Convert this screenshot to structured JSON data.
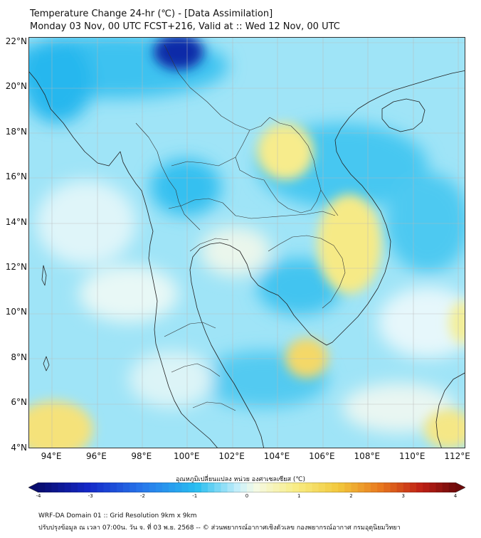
{
  "title_line1": "Temperature Change 24-hr (℃) - [Data Assimilation]",
  "title_line2": "Monday 03 Nov, 00 UTC FCST+216, Valid at :: Wed 12 Nov, 00 UTC",
  "lat_labels": [
    "22°N",
    "20°N",
    "18°N",
    "16°N",
    "14°N",
    "12°N",
    "10°N",
    "8°N",
    "6°N",
    "4°N"
  ],
  "lon_labels": [
    "94°E",
    "96°E",
    "98°E",
    "100°E",
    "102°E",
    "104°E",
    "106°E",
    "108°E",
    "110°E",
    "112°E"
  ],
  "colorbar": {
    "title": "อุณหภูมิเปลี่ยนแปลง หน่วย องศาเซลเซียส (℃)",
    "ticks": [
      "-4",
      "-3",
      "-2",
      "-1",
      "0",
      "1",
      "2",
      "3",
      "4"
    ],
    "min": -4,
    "max": 4
  },
  "footer_line1": "WRF-DA Domain 01 :: Grid Resolution 9km x 9km",
  "footer_line2": "ปรับปรุงข้อมูล ณ เวลา 07:00น. วัน จ. ที่ 03 พ.ย. 2568 -- © ส่วนพยากรณ์อากาศเชิงตัวเลข กองพยากรณ์อากาศ กรมอุตุนิยมวิทยา",
  "colors": {
    "cold_strong": "#0a1f9e",
    "cold": "#1fb4ee",
    "cool": "#8fe3f8",
    "neutral": "#e6f7fb",
    "warm": "#f5e98a",
    "hot": "#f1c232",
    "coast": "#222222"
  }
}
